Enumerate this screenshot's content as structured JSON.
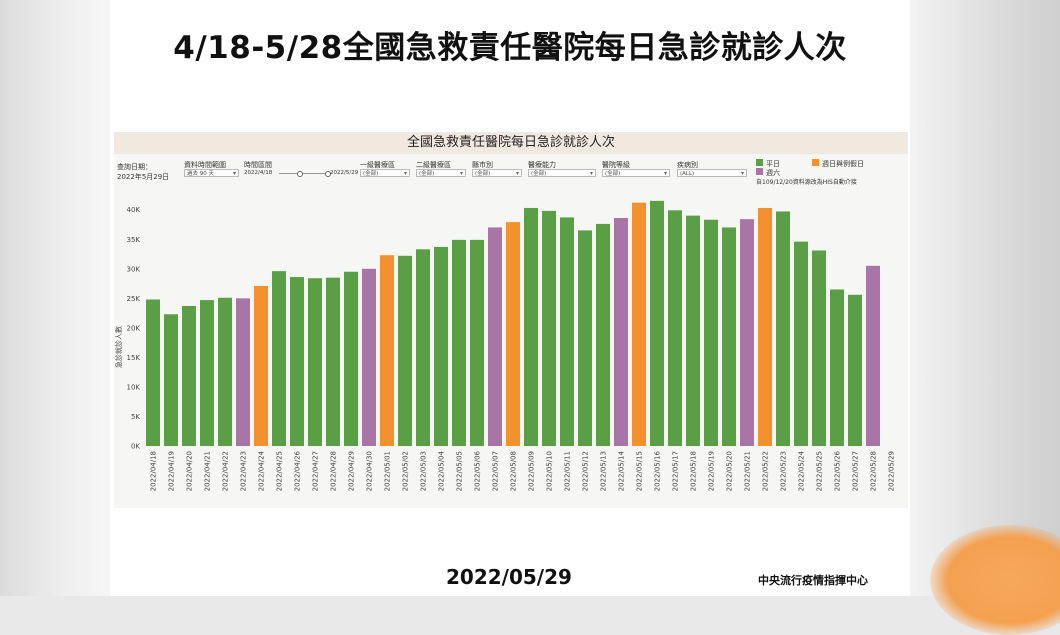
{
  "headline": "4/18-5/28全國急救責任醫院每日急診就診人次",
  "footer": {
    "date": "2022/05/29",
    "org": "中央流行疫情指揮中心"
  },
  "controls": {
    "query_date_label": "查詢日期：",
    "query_date_value": "2022年5月29日",
    "data_range_label": "資料時間範圍",
    "data_range_value": "過去 90 天",
    "period_label": "時間區間",
    "period_start": "2022/4/18",
    "period_end": "2022/5/29",
    "emerg1_label": "一級醫療區",
    "emerg1_value": "(全部)",
    "emerg2_label": "二級醫療區",
    "emerg2_value": "(全部)",
    "county_label": "縣市別",
    "county_value": "(全部)",
    "capacity_label": "醫療能力",
    "capacity_value": "(全部)",
    "hospital_level_label": "醫院等級",
    "hospital_level_value": "(全部)",
    "disease_label": "疾病別",
    "disease_value": "(ALL)"
  },
  "legend": {
    "weekday": "平日",
    "holiday": "週日與例假日",
    "saturday": "週六",
    "note": "自109/12/20資料源改為HIS自動介接"
  },
  "colors": {
    "weekday": "#5a9e45",
    "holiday": "#f2912e",
    "saturday": "#a775a6"
  },
  "chart_data": {
    "type": "bar",
    "title": "全國急救責任醫院每日急診就診人次",
    "ylabel": "急診就診人數",
    "ylim": [
      0,
      43000
    ],
    "yticks": [
      "0K",
      "5K",
      "10K",
      "15K",
      "20K",
      "25K",
      "30K",
      "35K",
      "40K"
    ],
    "categories": [
      "2022/04/18",
      "2022/04/19",
      "2022/04/20",
      "2022/04/21",
      "2022/04/22",
      "2022/04/23",
      "2022/04/24",
      "2022/04/25",
      "2022/04/26",
      "2022/04/27",
      "2022/04/28",
      "2022/04/29",
      "2022/04/30",
      "2022/05/01",
      "2022/05/02",
      "2022/05/03",
      "2022/05/04",
      "2022/05/05",
      "2022/05/06",
      "2022/05/07",
      "2022/05/08",
      "2022/05/09",
      "2022/05/10",
      "2022/05/11",
      "2022/05/12",
      "2022/05/13",
      "2022/05/14",
      "2022/05/15",
      "2022/05/16",
      "2022/05/17",
      "2022/05/18",
      "2022/05/19",
      "2022/05/20",
      "2022/05/21",
      "2022/05/22",
      "2022/05/23",
      "2022/05/24",
      "2022/05/25",
      "2022/05/26",
      "2022/05/27",
      "2022/05/28",
      "2022/05/29"
    ],
    "values": [
      24800,
      22300,
      23700,
      24700,
      25100,
      25000,
      27100,
      29600,
      28600,
      28400,
      28500,
      29500,
      30000,
      32300,
      32200,
      33300,
      33700,
      34900,
      34900,
      37000,
      37900,
      40300,
      39800,
      38700,
      36500,
      37600,
      38600,
      41200,
      41500,
      39900,
      39000,
      38300,
      37000,
      38400,
      40300,
      39700,
      34600,
      33100,
      26500,
      25600,
      30500,
      null
    ],
    "day_type": [
      "weekday",
      "weekday",
      "weekday",
      "weekday",
      "weekday",
      "saturday",
      "holiday",
      "weekday",
      "weekday",
      "weekday",
      "weekday",
      "weekday",
      "saturday",
      "holiday",
      "weekday",
      "weekday",
      "weekday",
      "weekday",
      "weekday",
      "saturday",
      "holiday",
      "weekday",
      "weekday",
      "weekday",
      "weekday",
      "weekday",
      "saturday",
      "holiday",
      "weekday",
      "weekday",
      "weekday",
      "weekday",
      "weekday",
      "saturday",
      "holiday",
      "weekday",
      "weekday",
      "weekday",
      "weekday",
      "weekday",
      "saturday",
      "holiday"
    ],
    "grid": false,
    "legend_position": "top-right"
  }
}
